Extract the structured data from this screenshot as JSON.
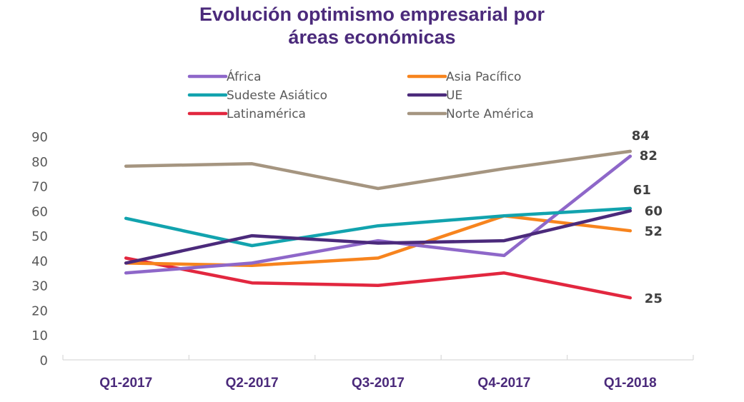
{
  "chart_data": {
    "type": "line",
    "title": "Evolución optimismo empresarial por áreas económicas",
    "title_lines": [
      "Evolución optimismo empresarial por",
      "áreas económicas"
    ],
    "xlabel": "",
    "ylabel": "",
    "categories": [
      "Q1-2017",
      "Q2-2017",
      "Q3-2017",
      "Q4-2017",
      "Q1-2018"
    ],
    "ylim": [
      0,
      90
    ],
    "yticks": [
      0,
      10,
      20,
      30,
      40,
      50,
      60,
      70,
      80,
      90
    ],
    "grid": false,
    "legend_position": "top",
    "series": [
      {
        "name": "África",
        "color": "#8E67C9",
        "values": [
          35,
          39,
          48,
          42,
          82
        ],
        "end_label": "82"
      },
      {
        "name": "Asia Pacífico",
        "color": "#F7841E",
        "values": [
          39,
          38,
          41,
          58,
          52
        ],
        "end_label": "52"
      },
      {
        "name": "Sudeste Asiático",
        "color": "#12A3AE",
        "values": [
          57,
          46,
          54,
          58,
          61
        ],
        "end_label": "61"
      },
      {
        "name": "UE",
        "color": "#4B2A7B",
        "values": [
          39,
          50,
          47,
          48,
          60
        ],
        "end_label": "60"
      },
      {
        "name": "Latinamérica",
        "color": "#E2273F",
        "values": [
          41,
          31,
          30,
          35,
          25
        ],
        "end_label": "25"
      },
      {
        "name": "Norte América",
        "color": "#A59580",
        "values": [
          78,
          79,
          69,
          77,
          84
        ],
        "end_label": "84"
      }
    ],
    "colors": {
      "title": "#4B2A7B",
      "axis_labels": "#595959",
      "category_labels": "#4B2A7B",
      "data_labels": "#404040",
      "axis_line": "#D9D9D9"
    }
  }
}
